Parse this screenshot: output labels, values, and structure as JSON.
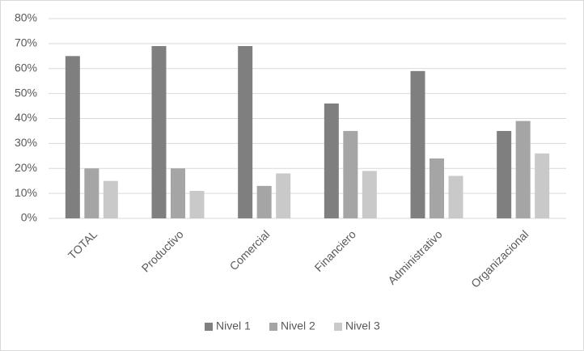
{
  "chart_data": {
    "type": "bar",
    "categories": [
      "TOTAL",
      "Productivo",
      "Comercial",
      "Financiero",
      "Administrativo",
      "Organizacional"
    ],
    "series": [
      {
        "name": "Nivel 1",
        "color": "#7f7f7f",
        "values": [
          65,
          69,
          69,
          46,
          59,
          35
        ]
      },
      {
        "name": "Nivel 2",
        "color": "#a5a5a5",
        "values": [
          20,
          20,
          13,
          35,
          24,
          39
        ]
      },
      {
        "name": "Nivel 3",
        "color": "#c9c9c9",
        "values": [
          15,
          11,
          18,
          19,
          17,
          26
        ]
      }
    ],
    "ylim": [
      0,
      80
    ],
    "yticks": [
      {
        "value": 0,
        "label": "0%"
      },
      {
        "value": 10,
        "label": "10%"
      },
      {
        "value": 20,
        "label": "20%"
      },
      {
        "value": 30,
        "label": "30%"
      },
      {
        "value": 40,
        "label": "40%"
      },
      {
        "value": 50,
        "label": "50%"
      },
      {
        "value": 60,
        "label": "60%"
      },
      {
        "value": 70,
        "label": "70%"
      },
      {
        "value": 80,
        "label": "80%"
      }
    ],
    "grid": true,
    "legend": "bottom"
  }
}
